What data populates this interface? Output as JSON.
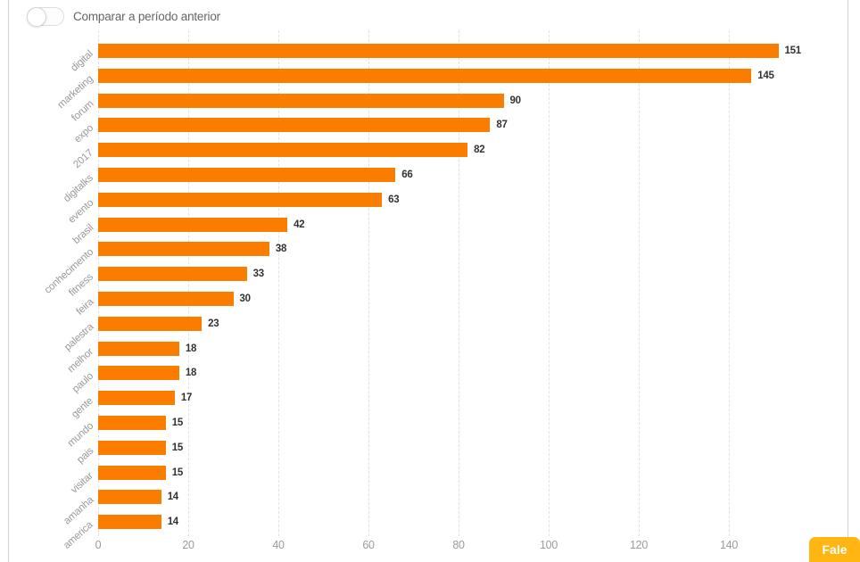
{
  "panel": {
    "toggle_label": "Comparar a período anterior",
    "toggle_state": "off"
  },
  "chart_data": {
    "type": "bar",
    "orientation": "horizontal",
    "title": "",
    "xlabel": "",
    "ylabel": "",
    "categories": [
      "digital",
      "marketing",
      "forum",
      "expo",
      "2017",
      "digitalks",
      "evento",
      "brasil",
      "conhecimento",
      "fitness",
      "feira",
      "palestra",
      "melhor",
      "paulo",
      "gente",
      "mundo",
      "pais",
      "visitar",
      "amanha",
      "america"
    ],
    "values": [
      151,
      145,
      90,
      87,
      82,
      66,
      63,
      42,
      38,
      33,
      30,
      23,
      18,
      18,
      17,
      15,
      15,
      15,
      14,
      14
    ],
    "x_ticks": [
      0,
      20,
      40,
      60,
      80,
      100,
      120,
      140
    ],
    "xlim": [
      0,
      160
    ],
    "grid": "vertical-dashed",
    "legend": "none",
    "value_labels": "end-of-bar"
  },
  "footer": {
    "chat_button_label": "Fale"
  },
  "colors": {
    "bar": "#fb7d00",
    "chat_button_bg": "#ffb612",
    "chat_button_text": "#ffffff",
    "grid_line": "#e2e2e2",
    "category_label": "#999999",
    "value_label": "#333333",
    "tick_label": "#9b9b9b",
    "panel_border": "#d2d2d2",
    "toggle_label": "#666666"
  }
}
